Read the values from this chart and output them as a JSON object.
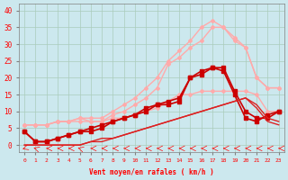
{
  "xlabel": "Vent moyen/en rafales ( km/h )",
  "background_color": "#cce8ee",
  "grid_color": "#aaccbb",
  "x_ticks": [
    0,
    1,
    2,
    3,
    4,
    5,
    6,
    7,
    8,
    9,
    10,
    11,
    12,
    13,
    14,
    15,
    16,
    17,
    18,
    19,
    20,
    21,
    22,
    23
  ],
  "ylim": [
    -2,
    42
  ],
  "xlim": [
    -0.5,
    23.5
  ],
  "series": [
    {
      "x": [
        0,
        1,
        2,
        3,
        4,
        5,
        6,
        7,
        8,
        9,
        10,
        11,
        12,
        13,
        14,
        15,
        16,
        17,
        18,
        19,
        20,
        21,
        22,
        23
      ],
      "y": [
        6,
        6,
        6,
        7,
        7,
        7,
        7,
        7,
        8,
        8,
        9,
        10,
        11,
        13,
        15,
        15,
        16,
        16,
        16,
        16,
        16,
        15,
        10,
        10
      ],
      "color": "#ffaaaa",
      "marker": "D",
      "markersize": 2,
      "linewidth": 1.0
    },
    {
      "x": [
        0,
        1,
        2,
        3,
        4,
        5,
        6,
        7,
        8,
        9,
        10,
        11,
        12,
        13,
        14,
        15,
        16,
        17,
        18,
        19,
        20,
        21,
        22,
        23
      ],
      "y": [
        6,
        6,
        6,
        7,
        7,
        8,
        8,
        8,
        10,
        12,
        14,
        17,
        20,
        25,
        28,
        31,
        35,
        37,
        35,
        32,
        29,
        20,
        17,
        17
      ],
      "color": "#ffaaaa",
      "marker": "D",
      "markersize": 2,
      "linewidth": 1.0
    },
    {
      "x": [
        0,
        1,
        2,
        3,
        4,
        5,
        6,
        7,
        8,
        9,
        10,
        11,
        12,
        13,
        14,
        15,
        16,
        17,
        18,
        19,
        20,
        21,
        22,
        23
      ],
      "y": [
        6,
        6,
        6,
        7,
        7,
        8,
        7,
        7,
        9,
        10,
        12,
        14,
        17,
        24,
        26,
        29,
        31,
        35,
        35,
        31,
        29,
        20,
        17,
        17
      ],
      "color": "#ffaaaa",
      "marker": "D",
      "markersize": 2,
      "linewidth": 1.0
    },
    {
      "x": [
        0,
        1,
        2,
        3,
        4,
        5,
        6,
        7,
        8,
        9,
        10,
        11,
        12,
        13,
        14,
        15,
        16,
        17,
        18,
        19,
        20,
        21,
        22,
        23
      ],
      "y": [
        4,
        1,
        1,
        2,
        3,
        4,
        5,
        6,
        7,
        8,
        9,
        10,
        12,
        12,
        13,
        20,
        21,
        23,
        23,
        16,
        10,
        8,
        8,
        10
      ],
      "color": "#cc0000",
      "marker": "s",
      "markersize": 2.5,
      "linewidth": 1.2
    },
    {
      "x": [
        0,
        1,
        2,
        3,
        4,
        5,
        6,
        7,
        8,
        9,
        10,
        11,
        12,
        13,
        14,
        15,
        16,
        17,
        18,
        19,
        20,
        21,
        22,
        23
      ],
      "y": [
        4,
        1,
        1,
        2,
        3,
        4,
        4,
        5,
        7,
        8,
        9,
        11,
        12,
        13,
        14,
        20,
        22,
        23,
        22,
        15,
        8,
        7,
        9,
        10
      ],
      "color": "#cc0000",
      "marker": "s",
      "markersize": 2.5,
      "linewidth": 1.2
    },
    {
      "x": [
        0,
        1,
        2,
        3,
        4,
        5,
        6,
        7,
        8,
        9,
        10,
        11,
        12,
        13,
        14,
        15,
        16,
        17,
        18,
        19,
        20,
        21,
        22,
        23
      ],
      "y": [
        0,
        0,
        0,
        0,
        0,
        0,
        1,
        2,
        2,
        3,
        4,
        5,
        6,
        7,
        8,
        9,
        10,
        11,
        12,
        13,
        14,
        12,
        8,
        7
      ],
      "color": "#dd2222",
      "marker": null,
      "markersize": 0,
      "linewidth": 1.0
    },
    {
      "x": [
        0,
        1,
        2,
        3,
        4,
        5,
        6,
        7,
        8,
        9,
        10,
        11,
        12,
        13,
        14,
        15,
        16,
        17,
        18,
        19,
        20,
        21,
        22,
        23
      ],
      "y": [
        0,
        0,
        0,
        0,
        0,
        0,
        1,
        1,
        2,
        3,
        4,
        5,
        6,
        7,
        8,
        9,
        10,
        11,
        12,
        13,
        14,
        11,
        7,
        6
      ],
      "color": "#dd2222",
      "marker": null,
      "markersize": 0,
      "linewidth": 1.0
    }
  ],
  "wind_arrows": {
    "x": [
      0,
      1,
      2,
      3,
      4,
      5,
      6,
      7,
      8,
      9,
      10,
      11,
      12,
      13,
      14,
      15,
      16,
      17,
      18,
      19,
      20,
      21,
      22,
      23
    ],
    "directions": [
      225,
      315,
      270,
      270,
      270,
      315,
      270,
      270,
      270,
      270,
      270,
      270,
      270,
      270,
      270,
      270,
      270,
      270,
      270,
      270,
      270,
      270,
      270,
      270
    ]
  }
}
